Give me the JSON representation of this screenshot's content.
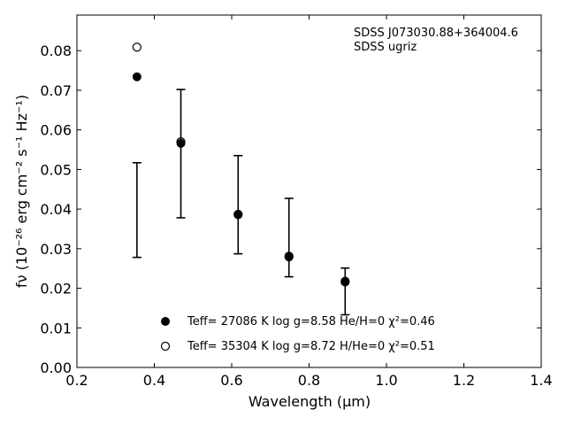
{
  "chart_data": {
    "type": "scatter",
    "title": "",
    "xlabel": "Wavelength (μm)",
    "ylabel": "fν (10⁻²⁶ erg cm⁻² s⁻¹ Hz⁻¹)",
    "xlim": [
      0.2,
      1.4
    ],
    "ylim": [
      0.0,
      0.089
    ],
    "xticks": [
      "0.2",
      "0.4",
      "0.6",
      "0.8",
      "1.0",
      "1.2",
      "1.4"
    ],
    "yticks": [
      "0.00",
      "0.01",
      "0.02",
      "0.03",
      "0.04",
      "0.05",
      "0.06",
      "0.07",
      "0.08"
    ],
    "annotation": [
      "SDSS J073030.88+364004.6",
      "SDSS ugriz"
    ],
    "observed": {
      "x": [
        0.3551,
        0.4686,
        0.6166,
        0.748,
        0.8932
      ],
      "y_low": [
        0.0278,
        0.0378,
        0.0287,
        0.0229,
        0.0133
      ],
      "y_high": [
        0.0517,
        0.0702,
        0.0535,
        0.0427,
        0.0251
      ]
    },
    "series": [
      {
        "name": "Teff= 27086 K  log g=8.58  He/H=0  χ²=0.46",
        "marker": "filled",
        "x": [
          0.3551,
          0.4686,
          0.6166,
          0.748,
          0.8932
        ],
        "y": [
          0.0734,
          0.0566,
          0.0387,
          0.0279,
          0.0218
        ]
      },
      {
        "name": "Teff= 35304 K  log g=8.72  H/He=0  χ²=0.51",
        "marker": "open",
        "x": [
          0.3551,
          0.4686,
          0.6166,
          0.748,
          0.8932
        ],
        "y": [
          0.0809,
          0.057,
          0.0386,
          0.0281,
          0.0216
        ]
      }
    ],
    "legend_position": "bottom-center",
    "grid": false
  }
}
